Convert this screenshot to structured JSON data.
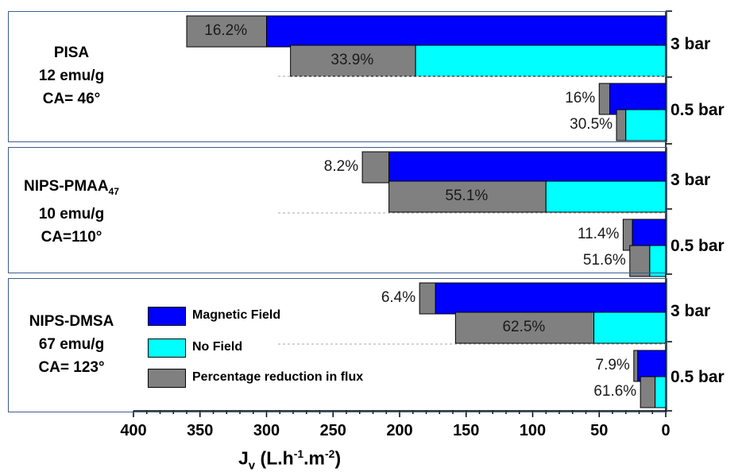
{
  "chart_data": {
    "type": "bar",
    "orientation": "horizontal",
    "x_reversed": true,
    "xlabel": "J_v (L.h-1.m-2)",
    "xlim": [
      0,
      400
    ],
    "x_ticks": [
      "400",
      "350",
      "300",
      "250",
      "200",
      "150",
      "100",
      "50",
      "0"
    ],
    "series": [
      {
        "name": "Magnetic Field",
        "color": "#0000ff"
      },
      {
        "name": "No Field",
        "color": "#00ffff"
      },
      {
        "name": "Percentage reduction in flux",
        "color": "#808080"
      }
    ],
    "panels": [
      {
        "label_lines": [
          "PISA",
          "12 emu/g",
          "CA= 46°"
        ],
        "groups": [
          {
            "pressure": "3 bar",
            "magnetic": {
              "value": 300,
              "gray_end": 360,
              "label": "16.2%"
            },
            "nofield": {
              "value": 188,
              "gray_end": 282,
              "label": "33.9%"
            }
          },
          {
            "pressure": "0.5 bar",
            "magnetic": {
              "value": 42,
              "gray_end": 50,
              "label": "16%"
            },
            "nofield": {
              "value": 30,
              "gray_end": 37,
              "label": "30.5%"
            }
          }
        ]
      },
      {
        "label_lines": [
          "NIPS-PMAA47",
          "10 emu/g",
          "CA=110°"
        ],
        "label_first_main": "NIPS-PMAA",
        "label_first_sub": "47",
        "groups": [
          {
            "pressure": "3 bar",
            "magnetic": {
              "value": 208,
              "gray_end": 228,
              "label": "8.2%"
            },
            "nofield": {
              "value": 90,
              "gray_end": 208,
              "label": "55.1%"
            }
          },
          {
            "pressure": "0.5 bar",
            "magnetic": {
              "value": 25,
              "gray_end": 32,
              "label": "11.4%"
            },
            "nofield": {
              "value": 12,
              "gray_end": 27,
              "label": "51.6%"
            }
          }
        ]
      },
      {
        "label_lines": [
          "NIPS-DMSA",
          "67 emu/g",
          "CA= 123°"
        ],
        "groups": [
          {
            "pressure": "3 bar",
            "magnetic": {
              "value": 173,
              "gray_end": 185,
              "label": "6.4%"
            },
            "nofield": {
              "value": 54,
              "gray_end": 158,
              "label": "62.5%"
            }
          },
          {
            "pressure": "0.5 bar",
            "magnetic": {
              "value": 21,
              "gray_end": 24,
              "label": "7.9%"
            },
            "nofield": {
              "value": 8,
              "gray_end": 19,
              "label": "61.6%"
            }
          }
        ]
      }
    ],
    "legend_position": "lower-left"
  },
  "axis": {
    "title_main": "J",
    "title_sub": "v",
    "title_units_a": " (L.h",
    "title_sup1": "-1",
    "title_units_b": ".m",
    "title_sup2": "-2",
    "title_units_c": ")"
  }
}
